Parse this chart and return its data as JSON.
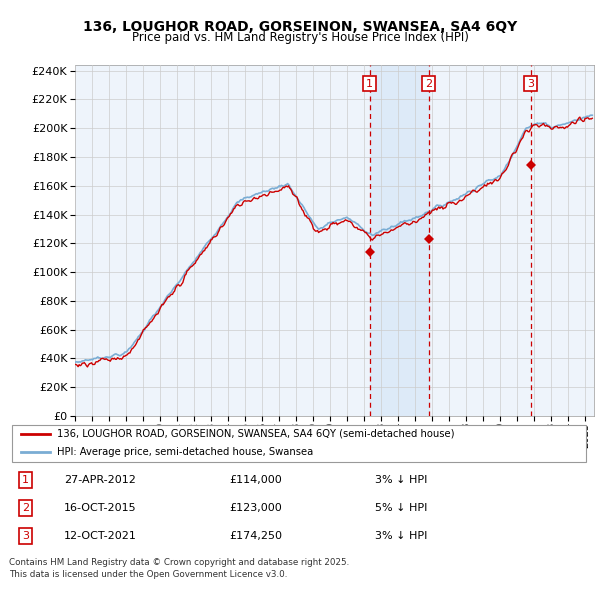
{
  "title1": "136, LOUGHOR ROAD, GORSEINON, SWANSEA, SA4 6QY",
  "title2": "Price paid vs. HM Land Registry's House Price Index (HPI)",
  "ylim": [
    0,
    244000
  ],
  "yticks": [
    0,
    20000,
    40000,
    60000,
    80000,
    100000,
    120000,
    140000,
    160000,
    180000,
    200000,
    220000,
    240000
  ],
  "xlim_start": 1995.0,
  "xlim_end": 2025.5,
  "background_color": "#ffffff",
  "plot_bg_color": "#eef4fb",
  "grid_color": "#cccccc",
  "hpi_line_color": "#7aadd4",
  "price_line_color": "#cc0000",
  "annotation_box_color": "#cc0000",
  "dashed_line_color": "#cc0000",
  "shade_color": "#ddeaf8",
  "legend_label_price": "136, LOUGHOR ROAD, GORSEINON, SWANSEA, SA4 6QY (semi-detached house)",
  "legend_label_hpi": "HPI: Average price, semi-detached house, Swansea",
  "transactions": [
    {
      "num": 1,
      "date": "27-APR-2012",
      "price": 114000,
      "pct": "3%",
      "dir": "↓",
      "year": 2012.32
    },
    {
      "num": 2,
      "date": "16-OCT-2015",
      "price": 123000,
      "pct": "5%",
      "dir": "↓",
      "year": 2015.79
    },
    {
      "num": 3,
      "date": "12-OCT-2021",
      "price": 174250,
      "pct": "3%",
      "dir": "↓",
      "year": 2021.78
    }
  ],
  "footer_line1": "Contains HM Land Registry data © Crown copyright and database right 2025.",
  "footer_line2": "This data is licensed under the Open Government Licence v3.0."
}
